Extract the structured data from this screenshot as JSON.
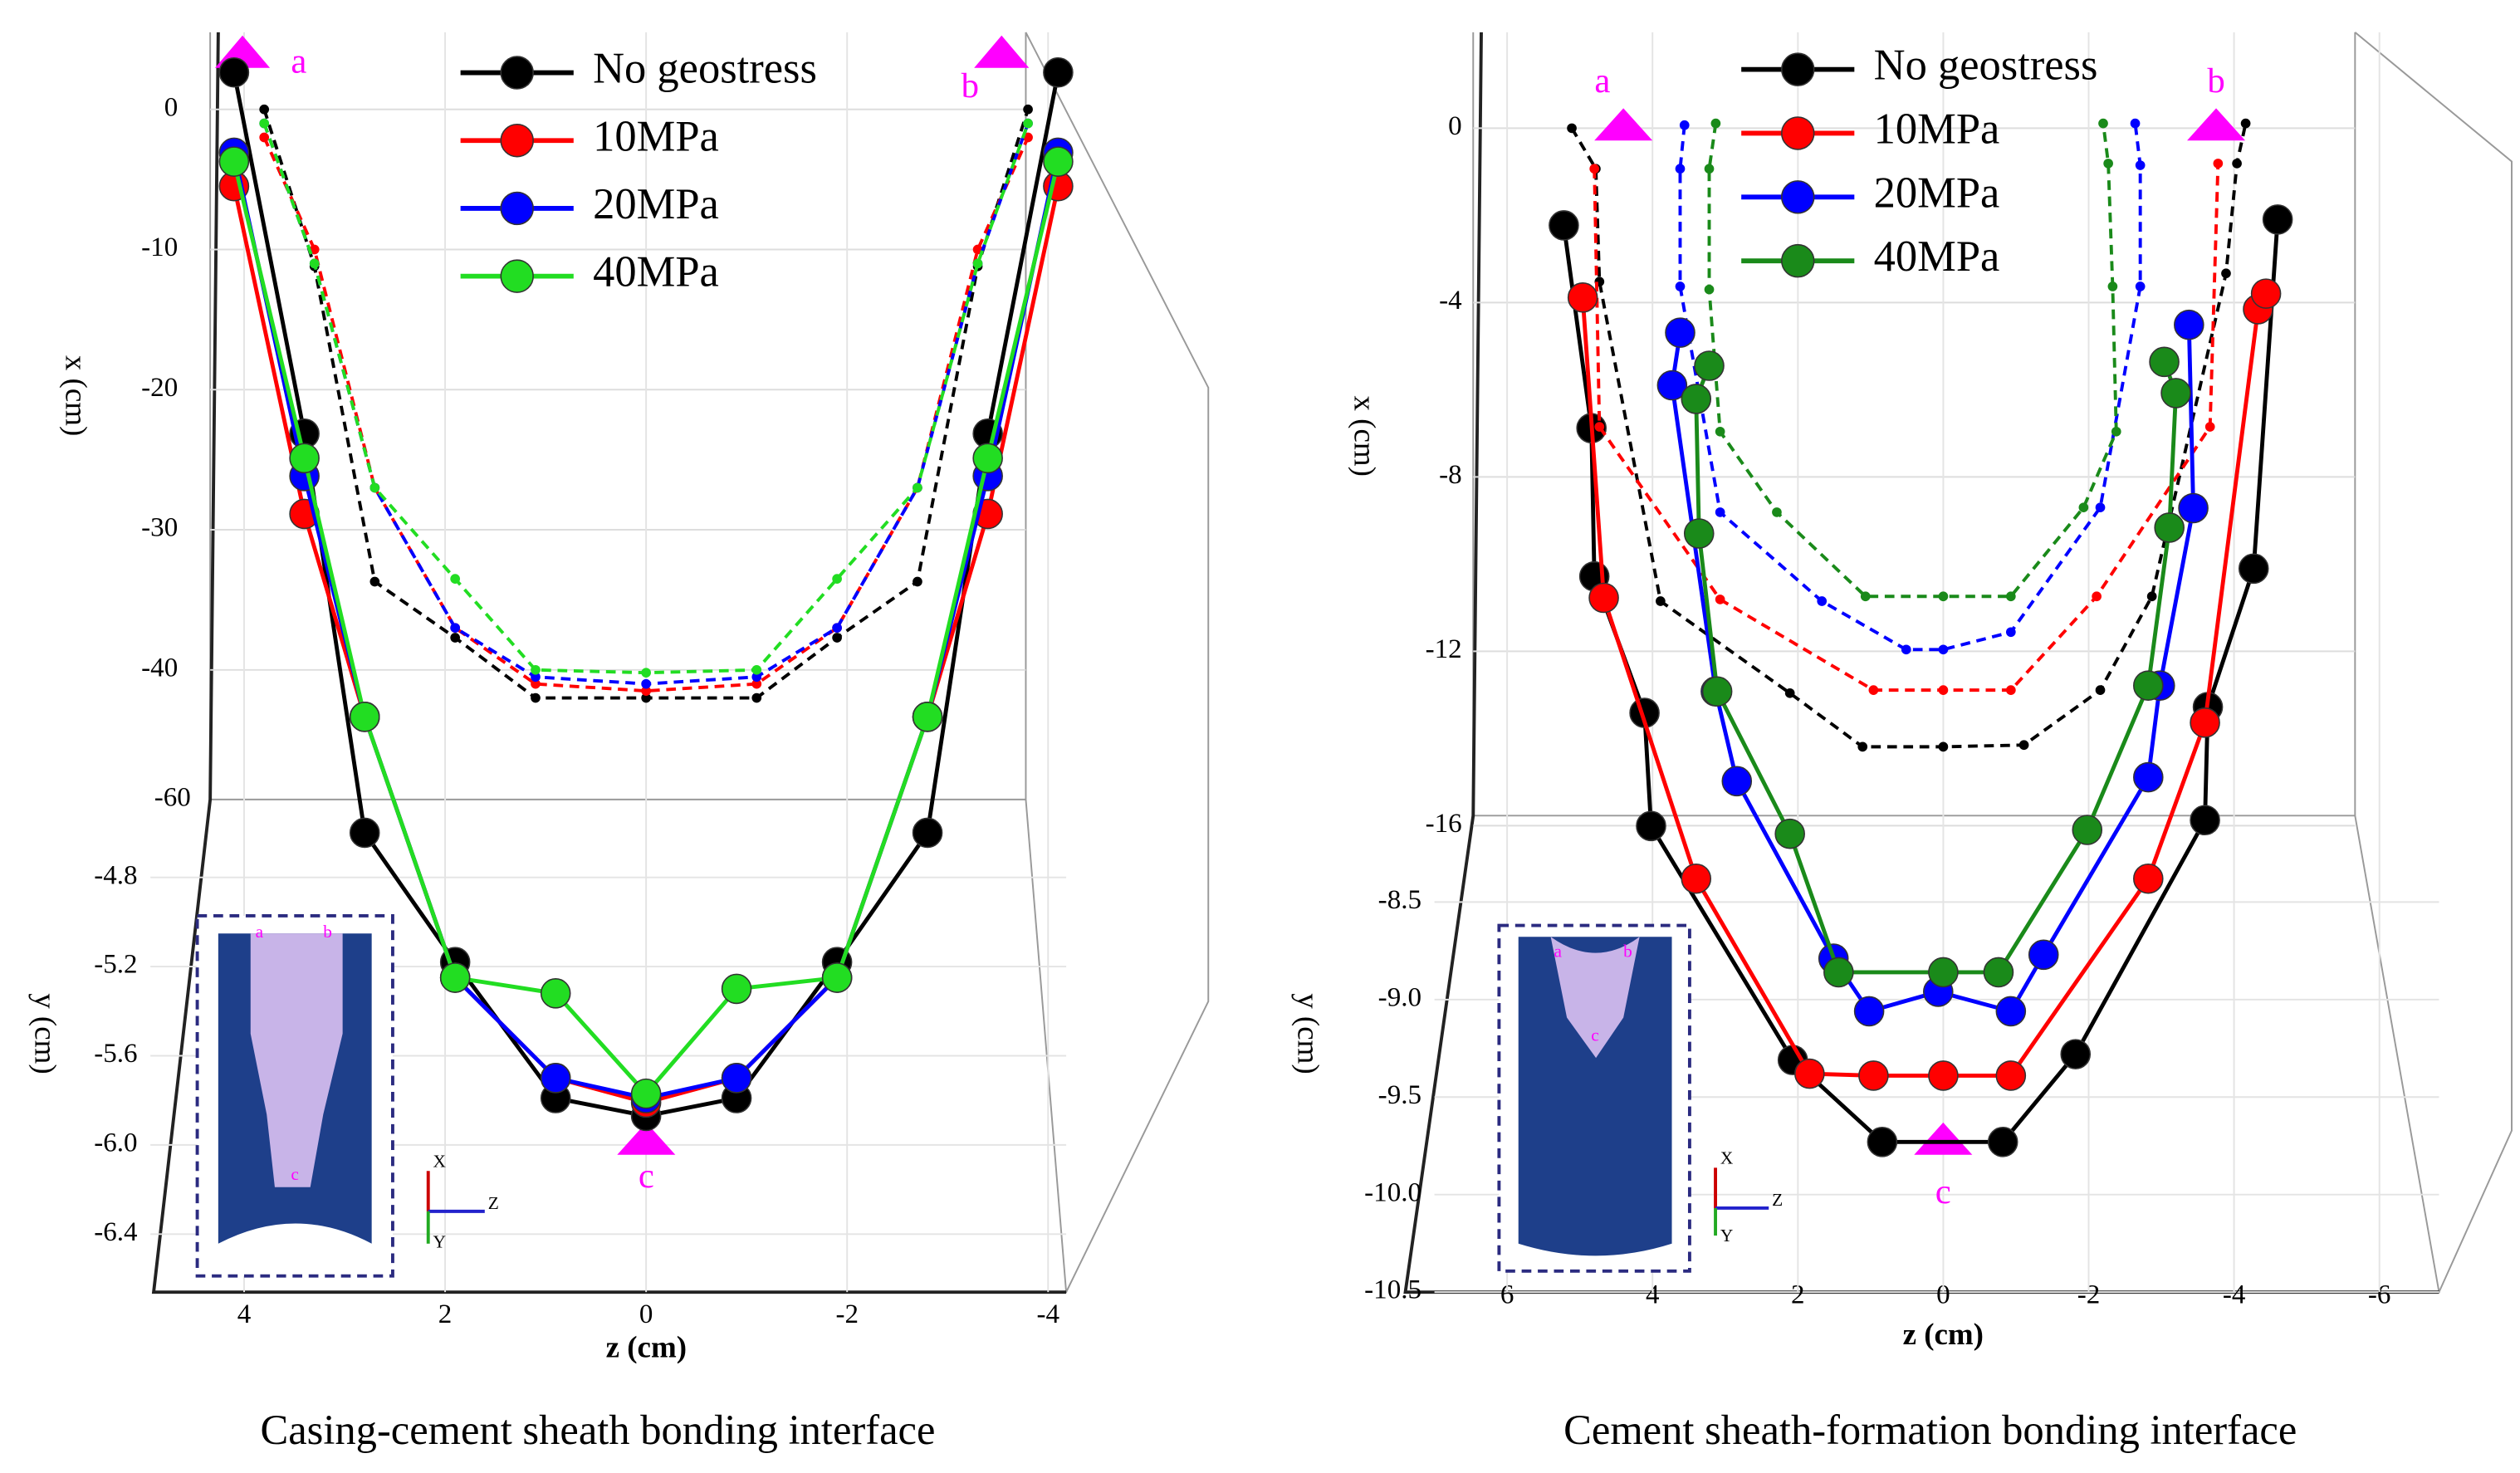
{
  "chart_data": [
    {
      "type": "line",
      "caption": "Casing-cement sheath bonding interface",
      "xlabel": "z (cm)",
      "ylabel": "x (cm)",
      "y2label": "y (cm)",
      "corner_label": "-60",
      "annotations": [
        "a",
        "b",
        "c"
      ],
      "axes_triad": [
        "X",
        "Y",
        "Z"
      ],
      "xlim": [
        4.9,
        -4.18
      ],
      "xticks": [
        4,
        2,
        0,
        -2,
        -4
      ],
      "ylim": [
        5.5,
        -84.4
      ],
      "yticks": [
        0,
        -10,
        -20,
        -30,
        -40
      ],
      "y2lim": [
        -1.01,
        -6.66
      ],
      "y2ticks": [
        -4.8,
        -5.2,
        -5.6,
        {
          "value": -6,
          "label": "-6.0"
        },
        -6.4
      ],
      "grid": true,
      "series": [
        {
          "name": "No geostress",
          "color": "#000000",
          "axis": "y2",
          "z": [
            4.1,
            3.4,
            2.8,
            1.9,
            0.9,
            0,
            -0.9,
            -1.9,
            -2.8,
            -3.4,
            -4.1
          ],
          "values": [
            -1.19,
            -2.81,
            -4.6,
            -5.18,
            -5.79,
            -5.87,
            -5.79,
            -5.18,
            -4.6,
            -2.81,
            -1.19
          ],
          "projection_z": [
            3.8,
            3.3,
            2.7,
            1.9,
            1.1,
            0,
            -1.1,
            -1.9,
            -2.7,
            -3.3,
            -3.8
          ],
          "projection_values": [
            0,
            -11.2,
            -33.7,
            -37.7,
            -42,
            -42,
            -42,
            -37.7,
            -33.7,
            -11.2,
            0
          ]
        },
        {
          "name": "10MPa",
          "color": "#ff0000",
          "axis": "y2",
          "z": [
            4.1,
            3.4,
            2.8,
            1.9,
            0.9,
            0,
            -0.9,
            -1.9,
            -2.8,
            -3.4,
            -4.1
          ],
          "values": [
            -1.7,
            -3.17,
            -4.08,
            -5.25,
            -5.7,
            -5.81,
            -5.7,
            -5.25,
            -4.08,
            -3.17,
            -1.7
          ],
          "projection_z": [
            3.8,
            3.3,
            2.7,
            1.9,
            1.1,
            0,
            -1.1,
            -1.9,
            -2.7,
            -3.3,
            -3.8
          ],
          "projection_values": [
            -2,
            -10,
            -27,
            -37,
            -41,
            -41.5,
            -41,
            -37,
            -27,
            -10,
            -2
          ]
        },
        {
          "name": "20MPa",
          "color": "#0000ff",
          "axis": "y2",
          "z": [
            4.1,
            3.4,
            2.8,
            1.9,
            0.9,
            0,
            -0.9,
            -1.9,
            -2.8,
            -3.4,
            -4.1
          ],
          "values": [
            -1.55,
            -3.0,
            -4.08,
            -5.25,
            -5.7,
            -5.79,
            -5.7,
            -5.25,
            -4.08,
            -3.0,
            -1.55
          ],
          "projection_z": [
            3.8,
            3.3,
            2.7,
            1.9,
            1.1,
            0,
            -1.1,
            -1.9,
            -2.7,
            -3.3,
            -3.8
          ],
          "projection_values": [
            -1,
            -11,
            -27,
            -37,
            -40.5,
            -41,
            -40.5,
            -37,
            -27,
            -11,
            -1
          ]
        },
        {
          "name": "40MPa",
          "color": "#22dd22",
          "axis": "y2",
          "z": [
            4.1,
            3.4,
            2.8,
            1.9,
            0.9,
            0,
            -0.9,
            -1.9,
            -2.8,
            -3.4,
            -4.1
          ],
          "values": [
            -1.59,
            -2.92,
            -4.08,
            -5.25,
            -5.32,
            -5.77,
            -5.3,
            -5.25,
            -4.08,
            -2.92,
            -1.59
          ],
          "projection_z": [
            3.8,
            3.3,
            2.7,
            1.9,
            1.1,
            0,
            -1.1,
            -1.9,
            -2.7,
            -3.3,
            -3.8
          ],
          "projection_values": [
            -1,
            -11,
            -27,
            -33.5,
            -40,
            -40.2,
            -40,
            -33.5,
            -27,
            -11,
            -1
          ]
        }
      ]
    },
    {
      "type": "line",
      "caption": "Cement sheath-formation bonding interface",
      "xlabel": "z (cm)",
      "ylabel": "x (cm)",
      "y2label": "y (cm)",
      "annotations": [
        "a",
        "b",
        "c"
      ],
      "axes_triad": [
        "X",
        "Y",
        "Z"
      ],
      "xlim": [
        7.4,
        -6.82
      ],
      "xticks": [
        6,
        4,
        2,
        0,
        -2,
        -4,
        -6
      ],
      "ylim": [
        2.2,
        -26.7
      ],
      "yticks": [
        0,
        -4,
        -8,
        -12,
        -16
      ],
      "y2lim": [
        -4.04,
        -10.5
      ],
      "y2ticks": [
        -8.5,
        {
          "value": -9,
          "label": "-9.0"
        },
        -9.5,
        {
          "value": -10,
          "label": "-10.0"
        },
        -10.5
      ],
      "grid": true,
      "series": [
        {
          "name": "No geostress",
          "color": "#000000",
          "axis": "y2",
          "z": [
            5.22,
            4.84,
            4.8,
            4.11,
            4.02,
            2.07,
            0.84,
            -0.82,
            -1.82,
            -3.6,
            -3.64,
            -4.27,
            -4.6
          ],
          "values": [
            -5.03,
            -6.07,
            -6.83,
            -7.53,
            -8.11,
            -9.31,
            -9.73,
            -9.73,
            -9.28,
            -8.08,
            -7.5,
            -6.79,
            -5.0
          ],
          "projection_z": [
            5.11,
            4.78,
            4.73,
            3.89,
            2.11,
            1.11,
            0,
            -1.11,
            -2.16,
            -2.87,
            -3.89,
            -4.04,
            -4.16
          ],
          "projection_values": [
            0,
            -0.93,
            -3.52,
            -10.85,
            -12.96,
            -14.19,
            -14.19,
            -14.15,
            -12.89,
            -10.74,
            -3.33,
            -0.81,
            0.11
          ]
        },
        {
          "name": "10MPa",
          "color": "#ff0000",
          "axis": "y2",
          "z": [
            4.96,
            4.67,
            3.4,
            1.84,
            0.96,
            0,
            -0.93,
            -2.82,
            -3.6,
            -4.33,
            -4.44
          ],
          "values": [
            -5.4,
            -6.94,
            -8.38,
            -9.38,
            -9.39,
            -9.39,
            -9.39,
            -8.38,
            -7.58,
            -5.46,
            -5.38
          ],
          "projection_z": [
            4.8,
            4.73,
            3.07,
            0.96,
            0,
            -0.93,
            -2.11,
            -3.67,
            -3.78
          ],
          "projection_values": [
            -0.93,
            -6.85,
            -10.81,
            -12.89,
            -12.89,
            -12.89,
            -10.74,
            -6.85,
            -0.81
          ]
        },
        {
          "name": "20MPa",
          "color": "#0000ff",
          "axis": "y2",
          "z": [
            3.62,
            3.73,
            3.13,
            2.84,
            1.51,
            1.02,
            0.07,
            -0.93,
            -1.38,
            -2.82,
            -2.98,
            -3.44,
            -3.38
          ],
          "values": [
            -5.58,
            -5.85,
            -7.42,
            -7.88,
            -8.79,
            -9.06,
            -8.96,
            -9.06,
            -8.77,
            -7.86,
            -7.39,
            -6.48,
            -5.54
          ],
          "projection_z": [
            3.56,
            3.62,
            3.62,
            3.07,
            1.67,
            0.51,
            0,
            -0.93,
            -2.16,
            -2.71,
            -2.71,
            -2.64
          ],
          "projection_values": [
            0.07,
            -0.93,
            -3.63,
            -8.81,
            -10.85,
            -11.96,
            -11.96,
            -11.56,
            -8.7,
            -3.63,
            -0.85,
            0.11
          ]
        },
        {
          "name": "40MPa",
          "color": "#1a8a1a",
          "axis": "y2",
          "z": [
            3.22,
            3.4,
            3.36,
            3.11,
            2.11,
            1.44,
            0,
            -0.76,
            -1.98,
            -2.82,
            -3.11,
            -3.2,
            -3.04
          ],
          "values": [
            -5.75,
            -5.92,
            -6.61,
            -7.42,
            -8.15,
            -8.86,
            -8.86,
            -8.86,
            -8.13,
            -7.39,
            -6.58,
            -5.89,
            -5.73
          ],
          "projection_z": [
            3.13,
            3.22,
            3.22,
            3.07,
            2.29,
            1.07,
            0,
            -0.93,
            -1.93,
            -2.38,
            -2.33,
            -2.27,
            -2.2
          ],
          "projection_values": [
            0.11,
            -0.93,
            -3.7,
            -6.96,
            -8.81,
            -10.74,
            -10.74,
            -10.74,
            -8.7,
            -6.96,
            -3.63,
            -0.81,
            0.11
          ]
        }
      ]
    }
  ]
}
